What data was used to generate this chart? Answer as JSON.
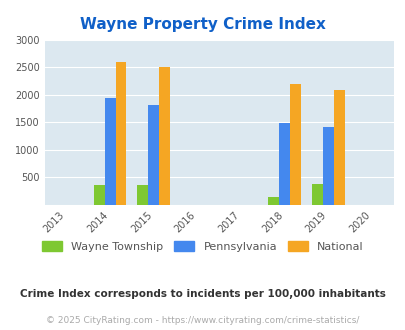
{
  "title": "Wayne Property Crime Index",
  "title_color": "#1060c8",
  "years": [
    2013,
    2014,
    2015,
    2016,
    2017,
    2018,
    2019,
    2020
  ],
  "bar_width": 0.25,
  "data": {
    "Wayne Township": {
      "years": [
        2014,
        2015,
        2018,
        2019
      ],
      "values": [
        350,
        350,
        130,
        380
      ],
      "color": "#7ec832"
    },
    "Pennsylvania": {
      "years": [
        2014,
        2015,
        2018,
        2019
      ],
      "values": [
        1940,
        1820,
        1490,
        1410
      ],
      "color": "#4488ee"
    },
    "National": {
      "years": [
        2014,
        2015,
        2018,
        2019
      ],
      "values": [
        2600,
        2500,
        2190,
        2090
      ],
      "color": "#f5a623"
    }
  },
  "xlim": [
    2012.5,
    2020.5
  ],
  "ylim": [
    0,
    3000
  ],
  "yticks": [
    0,
    500,
    1000,
    1500,
    2000,
    2500,
    3000
  ],
  "xticks": [
    2013,
    2014,
    2015,
    2016,
    2017,
    2018,
    2019,
    2020
  ],
  "bg_color": "#dce8f0",
  "fig_bg_color": "#ffffff",
  "grid_color": "#ffffff",
  "footnote": "Crime Index corresponds to incidents per 100,000 inhabitants",
  "footnote_color": "#333333",
  "copyright": "© 2025 CityRating.com - https://www.cityrating.com/crime-statistics/",
  "copyright_color": "#aaaaaa",
  "legend_labels": [
    "Wayne Township",
    "Pennsylvania",
    "National"
  ],
  "legend_colors": [
    "#7ec832",
    "#4488ee",
    "#f5a623"
  ]
}
